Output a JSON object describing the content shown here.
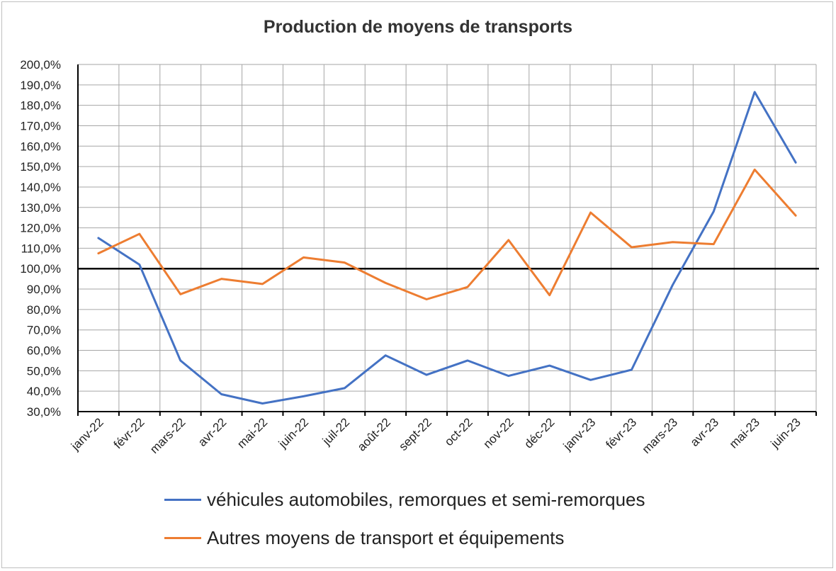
{
  "chart_data": {
    "type": "line",
    "title": "Production de moyens de transports",
    "categories": [
      "janv-22",
      "févr-22",
      "mars-22",
      "avr-22",
      "mai-22",
      "juin-22",
      "juil-22",
      "août-22",
      "sept-22",
      "oct-22",
      "nov-22",
      "déc-22",
      "janv-23",
      "févr-23",
      "mars-23",
      "avr-23",
      "mai-23",
      "juin-23"
    ],
    "y_ticks": [
      "30,0%",
      "40,0%",
      "50,0%",
      "60,0%",
      "70,0%",
      "80,0%",
      "90,0%",
      "100,0%",
      "110,0%",
      "120,0%",
      "130,0%",
      "140,0%",
      "150,0%",
      "160,0%",
      "170,0%",
      "180,0%",
      "190,0%",
      "200,0%"
    ],
    "ylim": [
      30,
      200
    ],
    "reference_line": 100,
    "grid": true,
    "legend_position": "bottom",
    "series": [
      {
        "name": "véhicules automobiles, remorques et semi-remorques",
        "color": "#4472c4",
        "values": [
          115,
          102,
          55,
          38.5,
          34,
          37.5,
          41.5,
          57.5,
          48,
          55,
          47.5,
          52.5,
          45.5,
          50.5,
          92,
          128,
          186.5,
          152
        ]
      },
      {
        "name": "Autres moyens de transport et équipements",
        "color": "#ed7d31",
        "values": [
          107.5,
          117,
          87.5,
          95,
          92.5,
          105.5,
          103,
          93,
          85,
          91,
          114,
          87,
          127.5,
          110.5,
          113,
          112,
          148.5,
          126
        ]
      }
    ]
  }
}
